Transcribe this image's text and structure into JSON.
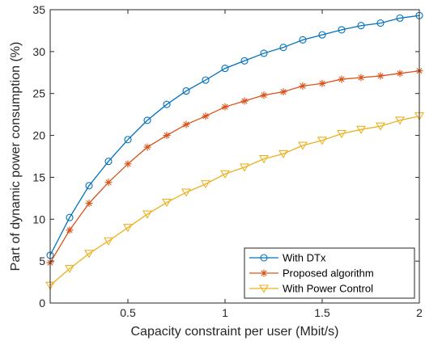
{
  "chart_data": {
    "type": "line",
    "title": "",
    "xlabel": "Capacity constraint per user (Mbit/s)",
    "ylabel": "Part of dynamic power consumption (%)",
    "xlim": [
      0.1,
      2
    ],
    "ylim": [
      0,
      35
    ],
    "xticks": [
      0.5,
      1,
      1.5,
      2
    ],
    "xtick_labels": [
      "0.5",
      "1",
      "1.5",
      "2"
    ],
    "yticks": [
      0,
      5,
      10,
      15,
      20,
      25,
      30,
      35
    ],
    "ytick_labels": [
      "0",
      "5",
      "10",
      "15",
      "20",
      "25",
      "30",
      "35"
    ],
    "grid": false,
    "legend_position": "bottom-right",
    "x": [
      0.1,
      0.2,
      0.3,
      0.4,
      0.5,
      0.6,
      0.7,
      0.8,
      0.9,
      1.0,
      1.1,
      1.2,
      1.3,
      1.4,
      1.5,
      1.6,
      1.7,
      1.8,
      1.9,
      2.0
    ],
    "series": [
      {
        "name": "With DTx",
        "color": "#0072BD",
        "marker": "circle",
        "values": [
          5.7,
          10.2,
          14.0,
          16.9,
          19.5,
          21.8,
          23.7,
          25.3,
          26.6,
          28.0,
          28.9,
          29.8,
          30.5,
          31.4,
          32.0,
          32.6,
          33.1,
          33.4,
          34.0,
          34.3
        ]
      },
      {
        "name": "Proposed algorithm",
        "color": "#D95319",
        "marker": "asterisk",
        "values": [
          4.8,
          8.7,
          11.9,
          14.4,
          16.6,
          18.6,
          20.0,
          21.3,
          22.3,
          23.4,
          24.1,
          24.8,
          25.2,
          25.9,
          26.2,
          26.7,
          26.9,
          27.1,
          27.4,
          27.7
        ]
      },
      {
        "name": "With Power Control",
        "color": "#EDB120",
        "marker": "triangle-down",
        "values": [
          2.1,
          4.1,
          5.9,
          7.4,
          9.0,
          10.6,
          12.0,
          13.2,
          14.2,
          15.4,
          16.2,
          17.2,
          17.8,
          18.8,
          19.4,
          20.2,
          20.7,
          21.1,
          21.8,
          22.3
        ]
      }
    ]
  }
}
